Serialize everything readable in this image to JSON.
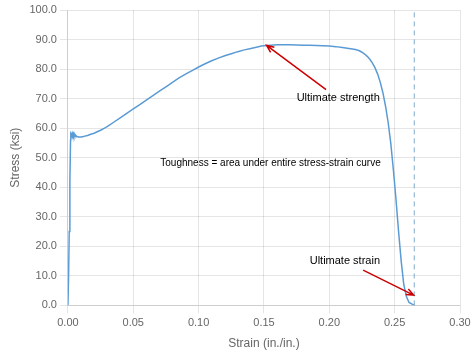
{
  "chart_data": {
    "type": "line",
    "x": [
      0.0,
      0.0005,
      0.001,
      0.0015,
      0.002,
      0.0022,
      0.0024,
      0.0025,
      0.0026,
      0.0028,
      0.003,
      0.0032,
      0.0034,
      0.0036,
      0.0038,
      0.004,
      0.0042,
      0.0044,
      0.0046,
      0.0048,
      0.005,
      0.0052,
      0.0054,
      0.0056,
      0.006,
      0.0065,
      0.007,
      0.0075,
      0.008,
      0.009,
      0.01,
      0.011,
      0.012,
      0.013,
      0.014,
      0.015,
      0.016,
      0.018,
      0.02,
      0.022,
      0.025,
      0.028,
      0.03,
      0.035,
      0.04,
      0.045,
      0.05,
      0.055,
      0.06,
      0.065,
      0.07,
      0.075,
      0.08,
      0.085,
      0.09,
      0.095,
      0.1,
      0.105,
      0.11,
      0.115,
      0.12,
      0.125,
      0.13,
      0.135,
      0.14,
      0.145,
      0.148,
      0.15,
      0.152,
      0.155,
      0.16,
      0.165,
      0.17,
      0.175,
      0.18,
      0.185,
      0.19,
      0.195,
      0.2,
      0.205,
      0.21,
      0.215,
      0.22,
      0.223,
      0.225,
      0.227,
      0.229,
      0.231,
      0.233,
      0.235,
      0.237,
      0.239,
      0.241,
      0.243,
      0.245,
      0.247,
      0.249,
      0.251,
      0.253,
      0.255,
      0.257,
      0.259,
      0.261,
      0.263,
      0.2645,
      0.265
    ],
    "series": [
      {
        "color": "#5b9bd5",
        "values": [
          0.0,
          10.0,
          25.0,
          42.0,
          56.0,
          58.0,
          57.8,
          58.2,
          57.5,
          58.0,
          57.6,
          58.3,
          57.5,
          58.1,
          57.7,
          58.2,
          57.6,
          58.0,
          57.5,
          58.1,
          57.8,
          58.0,
          57.6,
          57.8,
          57.5,
          57.3,
          57.2,
          57.1,
          57.0,
          57.0,
          57.0,
          57.1,
          57.2,
          57.3,
          57.4,
          57.5,
          57.7,
          58.0,
          58.3,
          58.7,
          59.3,
          60.0,
          60.5,
          62.0,
          63.5,
          65.0,
          66.5,
          68.0,
          69.5,
          71.0,
          72.5,
          74.0,
          75.5,
          77.0,
          78.3,
          79.5,
          80.7,
          81.8,
          82.8,
          83.7,
          84.5,
          85.2,
          85.9,
          86.5,
          87.0,
          87.5,
          87.8,
          87.9,
          88.0,
          88.1,
          88.2,
          88.2,
          88.2,
          88.15,
          88.1,
          88.05,
          88.0,
          87.9,
          87.8,
          87.6,
          87.3,
          87.0,
          86.6,
          86.2,
          85.7,
          85.1,
          84.3,
          83.3,
          82.0,
          80.4,
          78.3,
          75.5,
          72.0,
          67.5,
          62.0,
          55.0,
          46.0,
          36.0,
          25.0,
          15.0,
          7.0,
          3.0,
          1.0,
          0.5,
          0.2,
          0.0
        ]
      }
    ],
    "xlabel": "Strain (in./in.)",
    "ylabel": "Stress (ksi)",
    "xlim": [
      0.0,
      0.3
    ],
    "ylim": [
      0.0,
      100.0
    ],
    "xticks": [
      {
        "value": 0.0,
        "label": "0.00"
      },
      0.05,
      {
        "value": 0.1,
        "label": "0.10"
      },
      0.15,
      {
        "value": 0.2,
        "label": "0.20"
      },
      0.25,
      {
        "value": 0.3,
        "label": "0.30"
      }
    ],
    "yticks": [
      {
        "value": 0,
        "label": "0.0"
      },
      {
        "value": 10,
        "label": "10.0"
      },
      {
        "value": 20,
        "label": "20.0"
      },
      {
        "value": 30,
        "label": "30.0"
      },
      {
        "value": 40,
        "label": "40.0"
      },
      {
        "value": 50,
        "label": "50.0"
      },
      {
        "value": 60,
        "label": "60.0"
      },
      {
        "value": 70,
        "label": "70.0"
      },
      {
        "value": 80,
        "label": "80.0"
      },
      {
        "value": 90,
        "label": "90.0"
      },
      {
        "value": 100,
        "label": "100.0"
      }
    ],
    "grid": true,
    "reference_lines": [
      {
        "x": 0.265,
        "color": "#7faacc",
        "line_style": "dashed"
      }
    ],
    "annotations": [
      {
        "text": "Ultimate strength",
        "x": 0.175,
        "y": 72.0,
        "arrow_to": [
          0.152,
          88.0
        ],
        "color": "#cc0000"
      },
      {
        "text": "Ultimate strain",
        "x": 0.185,
        "y": 17.0,
        "arrow_to": [
          0.2645,
          3.5
        ],
        "color": "#cc0000"
      },
      {
        "text": "Toughness = area under entire stress-strain curve",
        "x": 0.155,
        "y": 48.0
      }
    ]
  }
}
